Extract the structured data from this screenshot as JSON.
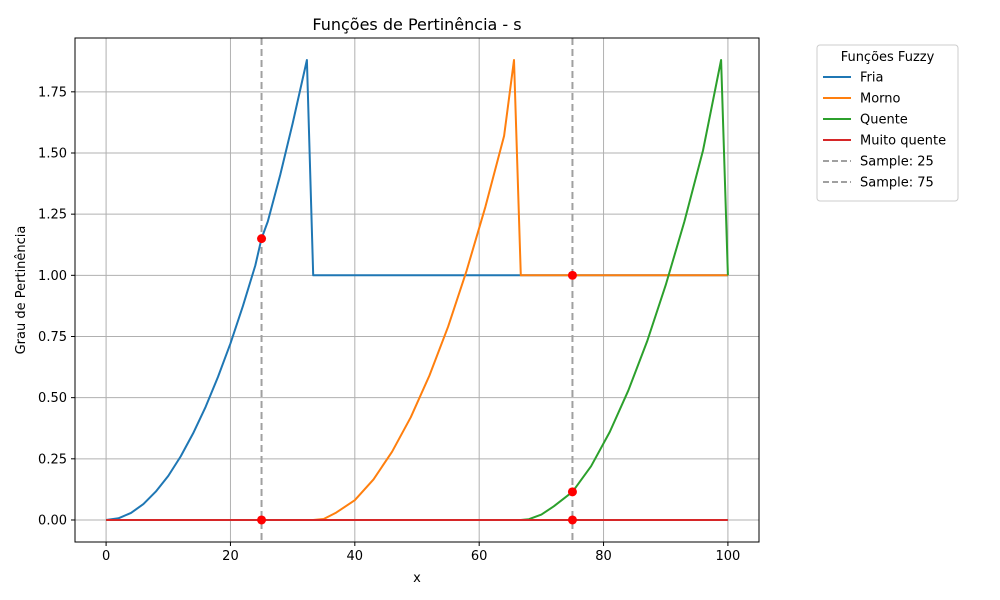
{
  "chart_data": {
    "type": "line",
    "title": "Funções de Pertinência - s",
    "xlabel": "x",
    "ylabel": "Grau de Pertinência",
    "xlim": [
      -5,
      105
    ],
    "ylim": [
      -0.09,
      1.97
    ],
    "xticks": [
      0,
      20,
      40,
      60,
      80,
      100
    ],
    "xtick_labels": [
      "0",
      "20",
      "40",
      "60",
      "80",
      "100"
    ],
    "yticks": [
      0.0,
      0.25,
      0.5,
      0.75,
      1.0,
      1.25,
      1.5,
      1.75
    ],
    "ytick_labels": [
      "0.00",
      "0.25",
      "0.50",
      "0.75",
      "1.00",
      "1.25",
      "1.50",
      "1.75"
    ],
    "grid": true,
    "legend": {
      "title": "Funções Fuzzy",
      "placement": "outside-top-right"
    },
    "series": [
      {
        "name": "Fria",
        "color": "#1f77b4",
        "x": [
          0,
          2,
          4,
          6,
          8,
          10,
          12,
          14,
          16,
          18,
          20,
          22,
          24,
          25,
          26,
          28,
          30,
          32.3,
          33.3,
          34,
          40,
          50,
          60,
          66.7,
          70,
          80,
          90,
          100
        ],
        "y": [
          0.0,
          0.007,
          0.029,
          0.065,
          0.116,
          0.18,
          0.26,
          0.354,
          0.462,
          0.585,
          0.722,
          0.874,
          1.04,
          1.15,
          1.22,
          1.41,
          1.62,
          1.88,
          1.0,
          1.0,
          1.0,
          1.0,
          1.0,
          1.0,
          1.0,
          1.0,
          1.0,
          1.0
        ]
      },
      {
        "name": "Morno",
        "color": "#ff7f0e",
        "x": [
          0,
          10,
          20,
          30,
          33.3,
          35,
          37,
          40,
          43,
          46,
          49,
          52,
          55,
          58,
          61,
          64,
          65.6,
          66.7,
          70,
          75,
          80,
          90,
          100
        ],
        "y": [
          0.0,
          0.0,
          0.0,
          0.0,
          0.0,
          0.004,
          0.03,
          0.081,
          0.166,
          0.279,
          0.42,
          0.59,
          0.79,
          1.02,
          1.28,
          1.57,
          1.88,
          1.0,
          1.0,
          1.0,
          1.0,
          1.0,
          1.0
        ]
      },
      {
        "name": "Quente",
        "color": "#2ca02c",
        "x": [
          0,
          20,
          40,
          60,
          66.7,
          68,
          70,
          72,
          75,
          78,
          81,
          84,
          87,
          90,
          93,
          96,
          98.9,
          100
        ],
        "y": [
          0.0,
          0.0,
          0.0,
          0.0,
          0.0,
          0.003,
          0.022,
          0.056,
          0.115,
          0.22,
          0.36,
          0.53,
          0.73,
          0.96,
          1.22,
          1.51,
          1.88,
          1.0
        ]
      },
      {
        "name": "Muito quente",
        "color": "#d62728",
        "x": [
          0,
          100
        ],
        "y": [
          0.0,
          0.0
        ]
      }
    ],
    "vlines": [
      {
        "name": "Sample: 25",
        "x": 25,
        "color": "#a0a0a0"
      },
      {
        "name": "Sample: 75",
        "x": 75,
        "color": "#a0a0a0"
      }
    ],
    "markers": {
      "color": "#ff0000",
      "points": [
        {
          "x": 25,
          "y": 1.15
        },
        {
          "x": 25,
          "y": 0.0
        },
        {
          "x": 75,
          "y": 1.0
        },
        {
          "x": 75,
          "y": 0.115
        },
        {
          "x": 75,
          "y": 0.0
        }
      ]
    }
  }
}
